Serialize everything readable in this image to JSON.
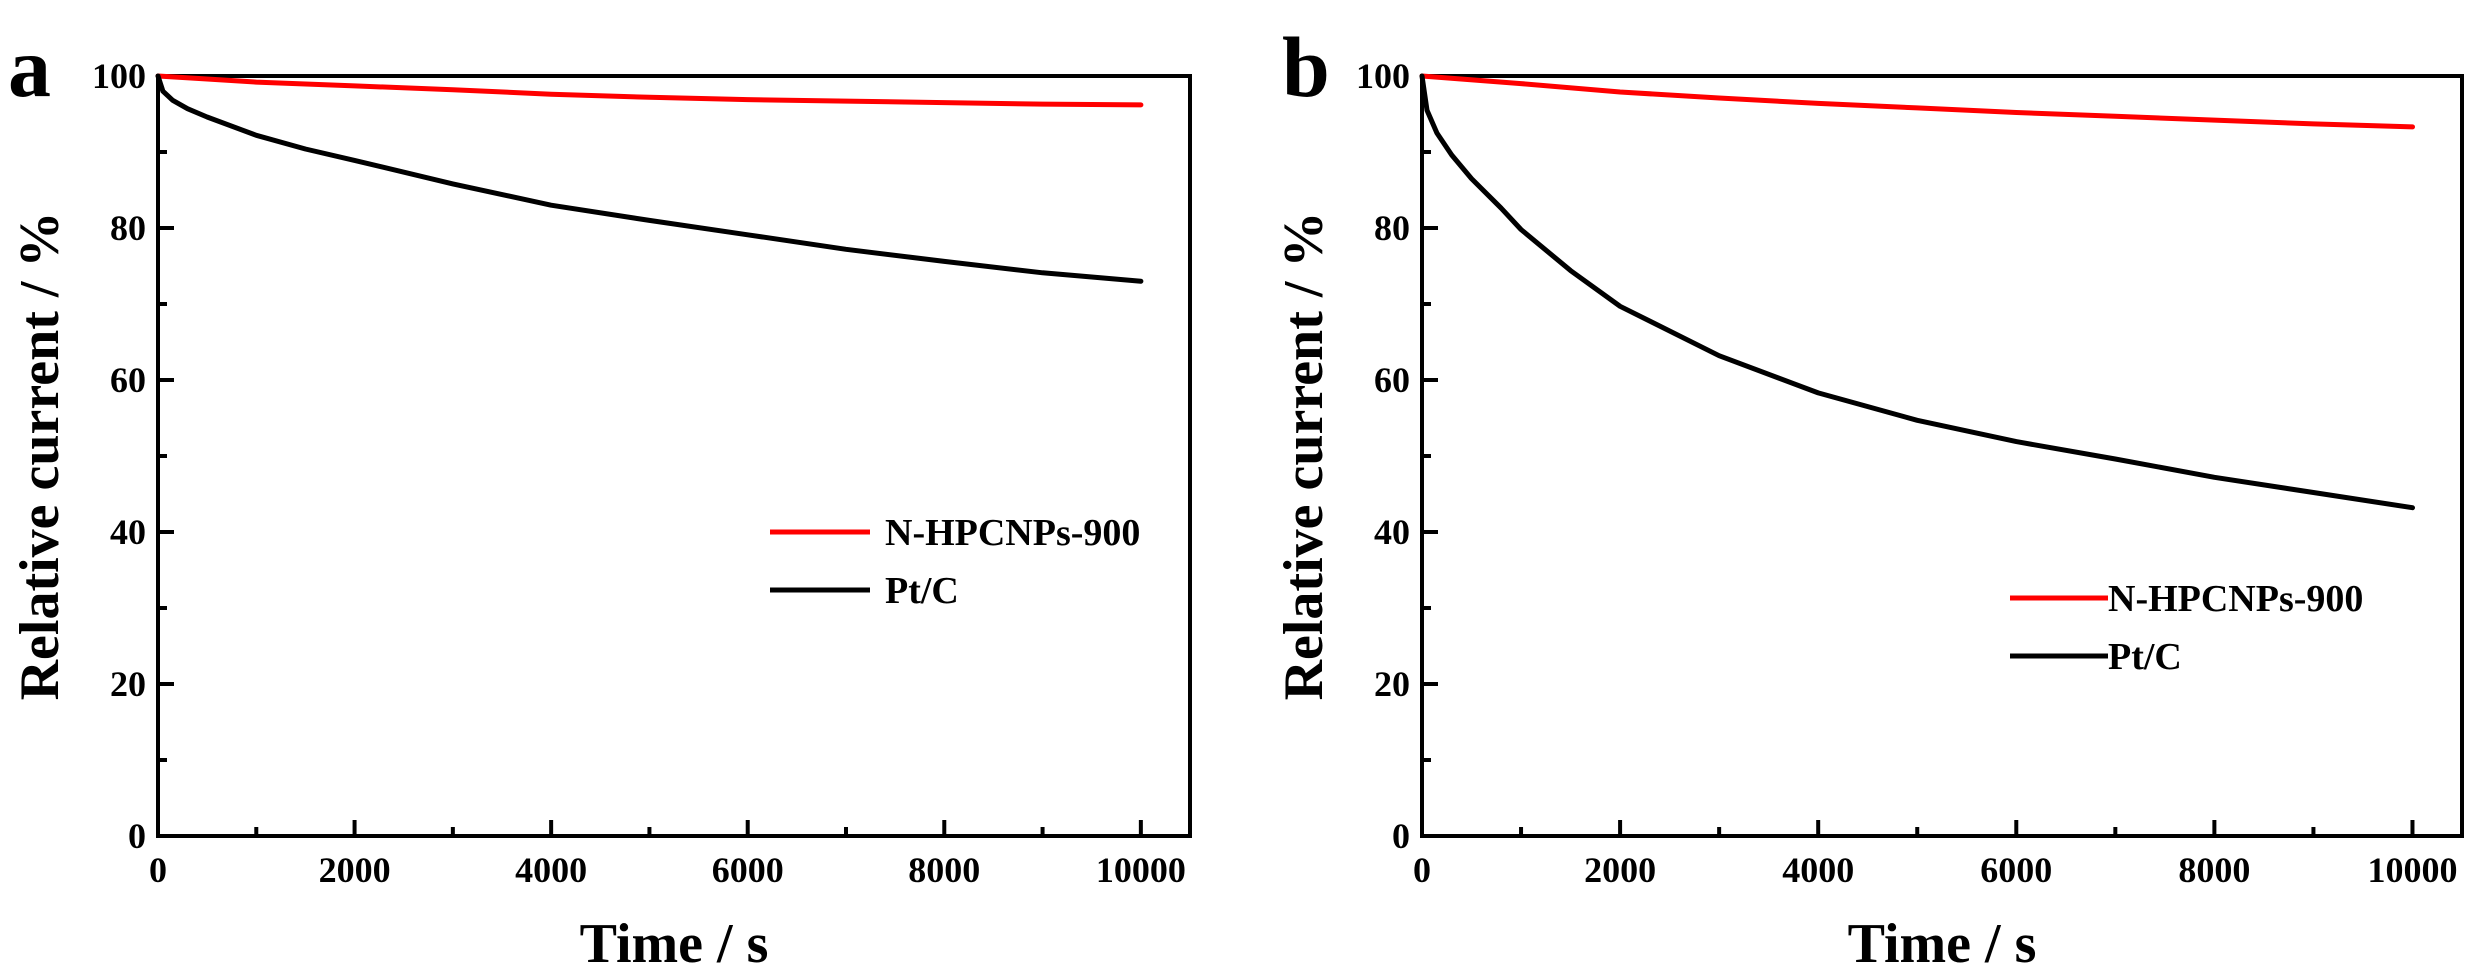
{
  "chart_data": [
    {
      "panel_label": "a",
      "type": "line",
      "xlabel": "Time / s",
      "ylabel": "Relative current / %",
      "xlim": [
        0,
        10500
      ],
      "ylim": [
        0,
        100
      ],
      "xticks": [
        "0",
        "2000",
        "4000",
        "6000",
        "8000",
        "10000"
      ],
      "yticks": [
        "0",
        "20",
        "40",
        "60",
        "80",
        "100"
      ],
      "grid": false,
      "legend_position": "middle-right",
      "series": [
        {
          "name": "N-HPCNPs-900",
          "color": "#ff0000",
          "x": [
            0,
            500,
            1000,
            2000,
            3000,
            4000,
            5000,
            6000,
            7000,
            8000,
            9000,
            10000
          ],
          "y": [
            100,
            99.6,
            99.2,
            98.7,
            98.2,
            97.6,
            97.2,
            96.9,
            96.7,
            96.5,
            96.3,
            96.2
          ]
        },
        {
          "name": "Pt/C",
          "color": "#000000",
          "x": [
            0,
            50,
            150,
            300,
            500,
            1000,
            1500,
            2000,
            3000,
            4000,
            5000,
            6000,
            7000,
            8000,
            9000,
            10000
          ],
          "y": [
            100,
            98.0,
            96.8,
            95.7,
            94.6,
            92.2,
            90.4,
            88.9,
            85.8,
            83.0,
            81.0,
            79.1,
            77.2,
            75.6,
            74.1,
            73.0
          ]
        }
      ]
    },
    {
      "panel_label": "b",
      "type": "line",
      "xlabel": "Time / s",
      "ylabel": "Relative current / %",
      "xlim": [
        0,
        10500
      ],
      "ylim": [
        0,
        100
      ],
      "xticks": [
        "0",
        "2000",
        "4000",
        "6000",
        "8000",
        "10000"
      ],
      "yticks": [
        "0",
        "20",
        "40",
        "60",
        "80",
        "100"
      ],
      "grid": false,
      "legend_position": "lower-right",
      "series": [
        {
          "name": "N-HPCNPs-900",
          "color": "#ff0000",
          "x": [
            0,
            1000,
            2000,
            3000,
            4000,
            5000,
            6000,
            7000,
            8000,
            9000,
            10000
          ],
          "y": [
            100,
            99.0,
            97.9,
            97.1,
            96.4,
            95.8,
            95.2,
            94.7,
            94.2,
            93.7,
            93.3
          ]
        },
        {
          "name": "Pt/C",
          "color": "#000000",
          "x": [
            0,
            50,
            150,
            300,
            500,
            800,
            1000,
            1500,
            2000,
            3000,
            4000,
            5000,
            6000,
            7000,
            8000,
            9000,
            10000
          ],
          "y": [
            100,
            95.5,
            92.5,
            89.6,
            86.5,
            82.6,
            79.8,
            74.4,
            69.7,
            63.2,
            58.3,
            54.7,
            51.9,
            49.6,
            47.2,
            45.2,
            43.2
          ]
        }
      ]
    }
  ]
}
